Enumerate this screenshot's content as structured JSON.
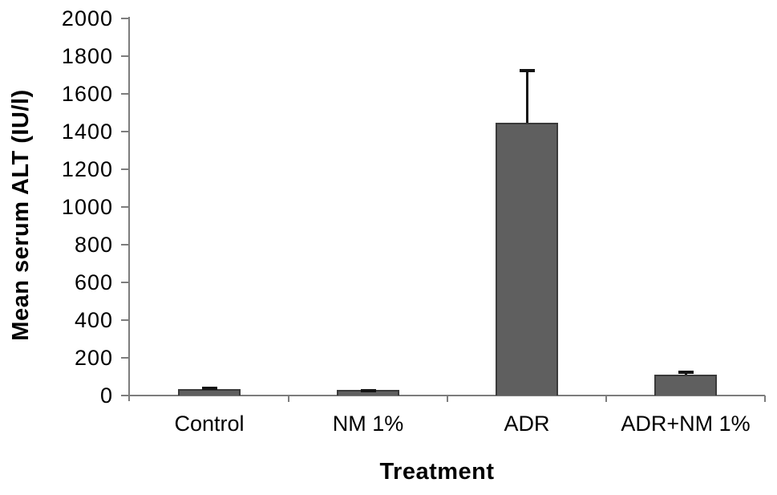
{
  "chart_data": {
    "type": "bar",
    "title": "",
    "xlabel": "Treatment",
    "ylabel": "Mean serum ALT (IU/l)",
    "categories": [
      "Control",
      "NM 1%",
      "ADR",
      "ADR+NM 1%"
    ],
    "series": [
      {
        "name": "Mean serum ALT",
        "values": [
          35,
          28,
          1445,
          110
        ],
        "errors_plus": [
          10,
          8,
          285,
          20
        ]
      }
    ],
    "ylim": [
      0,
      2000
    ],
    "yticks": [
      0,
      200,
      400,
      600,
      800,
      1000,
      1200,
      1400,
      1600,
      1800,
      2000
    ],
    "grid": false,
    "legend_position": "none",
    "bar_color": "#5f5f5f",
    "bar_border_color": "#3a3a3a",
    "error_bar_color": "#141414",
    "axis_color": "#7d7d7d",
    "text_color": "#000000"
  }
}
